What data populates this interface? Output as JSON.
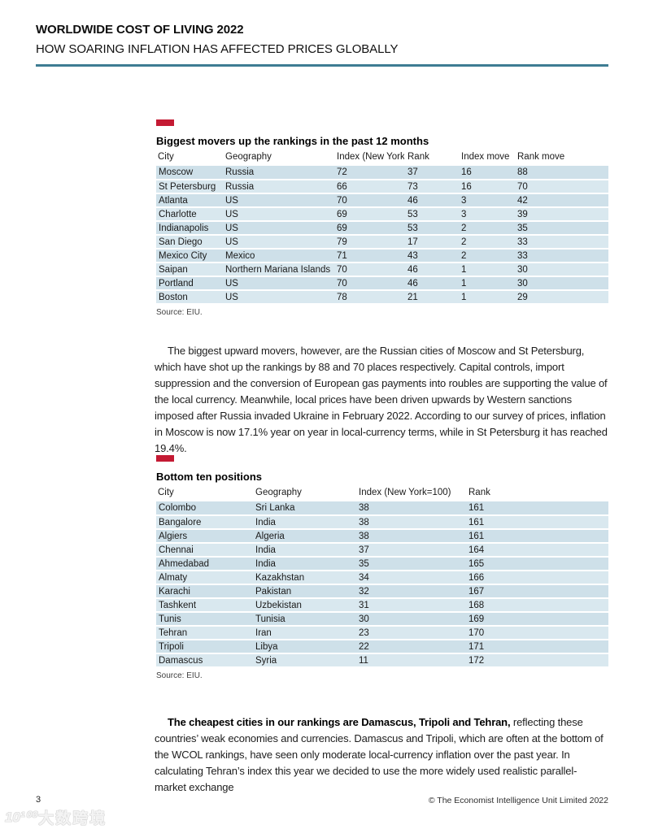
{
  "page": {
    "title": "WORLDWIDE COST OF LIVING 2022",
    "subtitle": "HOW SOARING INFLATION HAS AFFECTED PRICES GLOBALLY"
  },
  "colors": {
    "accent_red": "#c41a33",
    "rule_teal": "#3e7c93",
    "row_blue_odd": "#cee0e9",
    "row_blue_even": "#d9e8ef"
  },
  "tables": [
    {
      "title": "Biggest movers up the rankings in the past 12 months",
      "columns": [
        "City",
        "Geography",
        "Index (New York=100)",
        "Rank",
        "Index move",
        "Rank move"
      ],
      "rows": [
        [
          "Moscow",
          "Russia",
          "72",
          "37",
          "16",
          "88"
        ],
        [
          "St Petersburg",
          "Russia",
          "66",
          "73",
          "16",
          "70"
        ],
        [
          "Atlanta",
          "US",
          "70",
          "46",
          "3",
          "42"
        ],
        [
          "Charlotte",
          "US",
          "69",
          "53",
          "3",
          "39"
        ],
        [
          "Indianapolis",
          "US",
          "69",
          "53",
          "2",
          "35"
        ],
        [
          "San Diego",
          "US",
          "79",
          "17",
          "2",
          "33"
        ],
        [
          "Mexico City",
          "Mexico",
          "71",
          "43",
          "2",
          "33"
        ],
        [
          "Saipan",
          "Northern Mariana Islands",
          "70",
          "46",
          "1",
          "30"
        ],
        [
          "Portland",
          "US",
          "70",
          "46",
          "1",
          "30"
        ],
        [
          "Boston",
          "US",
          "78",
          "21",
          "1",
          "29"
        ]
      ],
      "source": "Source: EIU."
    },
    {
      "title": "Bottom ten positions",
      "columns": [
        "City",
        "Geography",
        "Index (New York=100)",
        "Rank"
      ],
      "rows": [
        [
          "Colombo",
          "Sri Lanka",
          "38",
          "161"
        ],
        [
          "Bangalore",
          "India",
          "38",
          "161"
        ],
        [
          "Algiers",
          "Algeria",
          "38",
          "161"
        ],
        [
          "Chennai",
          "India",
          "37",
          "164"
        ],
        [
          "Ahmedabad",
          "India",
          "35",
          "165"
        ],
        [
          "Almaty",
          "Kazakhstan",
          "34",
          "166"
        ],
        [
          "Karachi",
          "Pakistan",
          "32",
          "167"
        ],
        [
          "Tashkent",
          "Uzbekistan",
          "31",
          "168"
        ],
        [
          "Tunis",
          "Tunisia",
          "30",
          "169"
        ],
        [
          "Tehran",
          "Iran",
          "23",
          "170"
        ],
        [
          "Tripoli",
          "Libya",
          "22",
          "171"
        ],
        [
          "Damascus",
          "Syria",
          "11",
          "172"
        ]
      ],
      "source": "Source: EIU."
    }
  ],
  "paragraphs": {
    "p1": "The biggest upward movers, however, are the Russian cities of Moscow and St Petersburg, which have shot up the rankings by 88 and 70 places respectively. Capital controls, import suppression and the conversion of European gas payments into roubles are supporting the value of the local currency. Meanwhile, local prices have been driven upwards by Western sanctions imposed after Russia invaded Ukraine in February 2022. According to our survey of prices, inflation in Moscow is now 17.1% year on year in local-currency terms, while in St Petersburg it has reached 19.4%.",
    "p2_lead": "The cheapest cities in our rankings are Damascus, Tripoli and Tehran,",
    "p2_rest": " reflecting these countries’ weak economies and currencies. Damascus and Tripoli, which are often at the bottom of the WCOL rankings, have seen only moderate local-currency inflation over the past year. In calculating Tehran’s index this year we decided to use the more widely used realistic parallel-market exchange"
  },
  "footer": {
    "page_number": "3",
    "copyright": "© The Economist Intelligence Unit Limited 2022"
  },
  "watermark": {
    "logo": "10¹⁰⁰",
    "text": "大数跨境"
  }
}
